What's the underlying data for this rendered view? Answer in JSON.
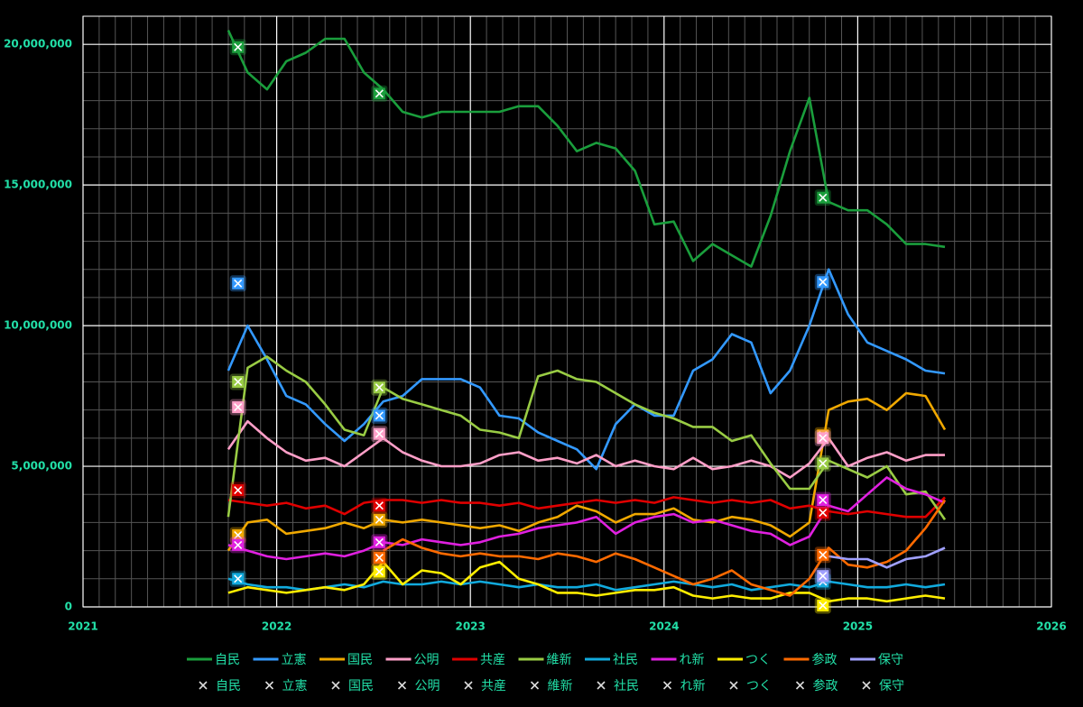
{
  "chart_data": {
    "type": "line",
    "x": [
      2021.75,
      2021.85,
      2021.95,
      2022.05,
      2022.15,
      2022.25,
      2022.35,
      2022.45,
      2022.55,
      2022.65,
      2022.75,
      2022.85,
      2022.95,
      2023.05,
      2023.15,
      2023.25,
      2023.35,
      2023.45,
      2023.55,
      2023.65,
      2023.75,
      2023.85,
      2023.95,
      2024.05,
      2024.15,
      2024.25,
      2024.35,
      2024.45,
      2024.55,
      2024.65,
      2024.75,
      2024.85,
      2024.95,
      2025.05,
      2025.15,
      2025.25,
      2025.35,
      2025.45
    ],
    "series": [
      {
        "name": "自民",
        "color": "#1a9e3c",
        "values": [
          20500000,
          19000000,
          18400000,
          19400000,
          19700000,
          20200000,
          20200000,
          19000000,
          18400000,
          17600000,
          17400000,
          17600000,
          17600000,
          17600000,
          17600000,
          17800000,
          17800000,
          17100000,
          16200000,
          16500000,
          16300000,
          15500000,
          13600000,
          13700000,
          12300000,
          12900000,
          12500000,
          12100000,
          13900000,
          16200000,
          18100000,
          14400000,
          14100000,
          14100000,
          13600000,
          12900000,
          12900000,
          12800000
        ]
      },
      {
        "name": "立憲",
        "color": "#3399ff",
        "values": [
          8400000,
          10000000,
          8800000,
          7500000,
          7200000,
          6500000,
          5900000,
          6500000,
          7300000,
          7500000,
          8100000,
          8100000,
          8100000,
          7800000,
          6800000,
          6700000,
          6200000,
          5900000,
          5600000,
          4900000,
          6500000,
          7200000,
          6800000,
          6800000,
          8400000,
          8800000,
          9700000,
          9400000,
          7600000,
          8400000,
          10000000,
          12000000,
          10400000,
          9400000,
          9100000,
          8800000,
          8400000,
          8300000
        ]
      },
      {
        "name": "国民",
        "color": "#f0a800",
        "values": [
          2000000,
          3000000,
          3100000,
          2600000,
          2700000,
          2800000,
          3000000,
          2800000,
          3100000,
          3000000,
          3100000,
          3000000,
          2900000,
          2800000,
          2900000,
          2700000,
          3000000,
          3200000,
          3600000,
          3400000,
          3000000,
          3300000,
          3300000,
          3500000,
          3100000,
          3000000,
          3200000,
          3100000,
          2900000,
          2500000,
          3000000,
          7000000,
          7300000,
          7400000,
          7000000,
          7600000,
          7500000,
          6300000
        ]
      },
      {
        "name": "公明",
        "color": "#ff9fc8",
        "values": [
          5600000,
          6600000,
          6000000,
          5500000,
          5200000,
          5300000,
          5000000,
          5500000,
          6000000,
          5500000,
          5200000,
          5000000,
          5000000,
          5100000,
          5400000,
          5500000,
          5200000,
          5300000,
          5100000,
          5400000,
          5000000,
          5200000,
          5000000,
          4900000,
          5300000,
          4900000,
          5000000,
          5200000,
          5000000,
          4600000,
          5100000,
          6000000,
          5000000,
          5300000,
          5500000,
          5200000,
          5400000,
          5400000
        ]
      },
      {
        "name": "共産",
        "color": "#e00000",
        "values": [
          3800000,
          3700000,
          3600000,
          3700000,
          3500000,
          3600000,
          3300000,
          3700000,
          3800000,
          3800000,
          3700000,
          3800000,
          3700000,
          3700000,
          3600000,
          3700000,
          3500000,
          3600000,
          3700000,
          3800000,
          3700000,
          3800000,
          3700000,
          3900000,
          3800000,
          3700000,
          3800000,
          3700000,
          3800000,
          3500000,
          3600000,
          3400000,
          3300000,
          3400000,
          3300000,
          3200000,
          3200000,
          3900000
        ]
      },
      {
        "name": "維新",
        "color": "#99cc44",
        "values": [
          3200000,
          8500000,
          8900000,
          8400000,
          8000000,
          7200000,
          6300000,
          6100000,
          7800000,
          7400000,
          7200000,
          7000000,
          6800000,
          6300000,
          6200000,
          6000000,
          8200000,
          8400000,
          8100000,
          8000000,
          7600000,
          7200000,
          6900000,
          6700000,
          6400000,
          6400000,
          5900000,
          6100000,
          5100000,
          4200000,
          4200000,
          5200000,
          4900000,
          4600000,
          5000000,
          4000000,
          4100000,
          3100000
        ]
      },
      {
        "name": "社民",
        "color": "#11aadd",
        "values": [
          1000000,
          800000,
          700000,
          700000,
          600000,
          700000,
          800000,
          700000,
          900000,
          800000,
          800000,
          900000,
          800000,
          900000,
          800000,
          700000,
          800000,
          700000,
          700000,
          800000,
          600000,
          700000,
          800000,
          900000,
          800000,
          700000,
          800000,
          600000,
          700000,
          800000,
          700000,
          900000,
          800000,
          700000,
          700000,
          800000,
          700000,
          800000
        ]
      },
      {
        "name": "れ新",
        "color": "#e020e0",
        "values": [
          2200000,
          2000000,
          1800000,
          1700000,
          1800000,
          1900000,
          1800000,
          2000000,
          2300000,
          2200000,
          2400000,
          2300000,
          2200000,
          2300000,
          2500000,
          2600000,
          2800000,
          2900000,
          3000000,
          3200000,
          2600000,
          3000000,
          3200000,
          3300000,
          3000000,
          3100000,
          2900000,
          2700000,
          2600000,
          2200000,
          2500000,
          3600000,
          3400000,
          4000000,
          4600000,
          4200000,
          4000000,
          3700000
        ]
      },
      {
        "name": "つく",
        "color": "#ffee00",
        "values": [
          500000,
          700000,
          600000,
          500000,
          600000,
          700000,
          600000,
          800000,
          1600000,
          800000,
          1300000,
          1200000,
          800000,
          1400000,
          1600000,
          1000000,
          800000,
          500000,
          500000,
          400000,
          500000,
          600000,
          600000,
          700000,
          400000,
          300000,
          400000,
          300000,
          300000,
          500000,
          500000,
          200000,
          300000,
          300000,
          200000,
          300000,
          400000,
          300000
        ]
      },
      {
        "name": "参政",
        "color": "#ff6a00",
        "values": [
          null,
          null,
          null,
          null,
          null,
          null,
          null,
          null,
          2000000,
          2400000,
          2100000,
          1900000,
          1800000,
          1900000,
          1800000,
          1800000,
          1700000,
          1900000,
          1800000,
          1600000,
          1900000,
          1700000,
          1400000,
          1100000,
          800000,
          1000000,
          1300000,
          800000,
          600000,
          400000,
          1000000,
          2100000,
          1500000,
          1400000,
          1600000,
          2000000,
          2800000,
          3800000
        ]
      },
      {
        "name": "保守",
        "color": "#a0a0ff",
        "values": [
          null,
          null,
          null,
          null,
          null,
          null,
          null,
          null,
          null,
          null,
          null,
          null,
          null,
          null,
          null,
          null,
          null,
          null,
          null,
          null,
          null,
          null,
          null,
          null,
          null,
          null,
          null,
          null,
          null,
          null,
          null,
          1800000,
          1700000,
          1700000,
          1400000,
          1700000,
          1800000,
          2100000
        ]
      }
    ],
    "markers": {
      "x": [
        2021.8,
        2022.53,
        2024.82
      ],
      "series": [
        {
          "name": "自民",
          "color": "#1a9e3c",
          "values": [
            19900000,
            18250000,
            14550000
          ]
        },
        {
          "name": "立憲",
          "color": "#3399ff",
          "values": [
            11500000,
            6800000,
            11550000
          ]
        },
        {
          "name": "国民",
          "color": "#f0a800",
          "values": [
            2550000,
            3100000,
            6100000
          ]
        },
        {
          "name": "公明",
          "color": "#ff9fc8",
          "values": [
            7100000,
            6150000,
            6000000
          ]
        },
        {
          "name": "共産",
          "color": "#e00000",
          "values": [
            4150000,
            3600000,
            3350000
          ]
        },
        {
          "name": "維新",
          "color": "#99cc44",
          "values": [
            8000000,
            7800000,
            5100000
          ]
        },
        {
          "name": "社民",
          "color": "#11aadd",
          "values": [
            1000000,
            null,
            900000
          ]
        },
        {
          "name": "れ新",
          "color": "#e020e0",
          "values": [
            2200000,
            2300000,
            3800000
          ]
        },
        {
          "name": "つく",
          "color": "#ffee00",
          "values": [
            null,
            1250000,
            50000
          ]
        },
        {
          "name": "参政",
          "color": "#ff6a00",
          "values": [
            null,
            1750000,
            1850000
          ]
        },
        {
          "name": "保守",
          "color": "#a0a0ff",
          "values": [
            null,
            null,
            1100000
          ]
        }
      ]
    },
    "xlim": [
      2021,
      2026
    ],
    "xticks": [
      2021,
      2022,
      2023,
      2024,
      2025,
      2026
    ],
    "ylim": [
      0,
      21000000
    ],
    "yticks": [
      0,
      {
        "value": 5000000,
        "label": "5,000,000"
      },
      {
        "value": 10000000,
        "label": "10,000,000"
      },
      {
        "value": 15000000,
        "label": "15,000,000"
      },
      {
        "value": 20000000,
        "label": "20,000,000"
      }
    ],
    "grid": true
  }
}
